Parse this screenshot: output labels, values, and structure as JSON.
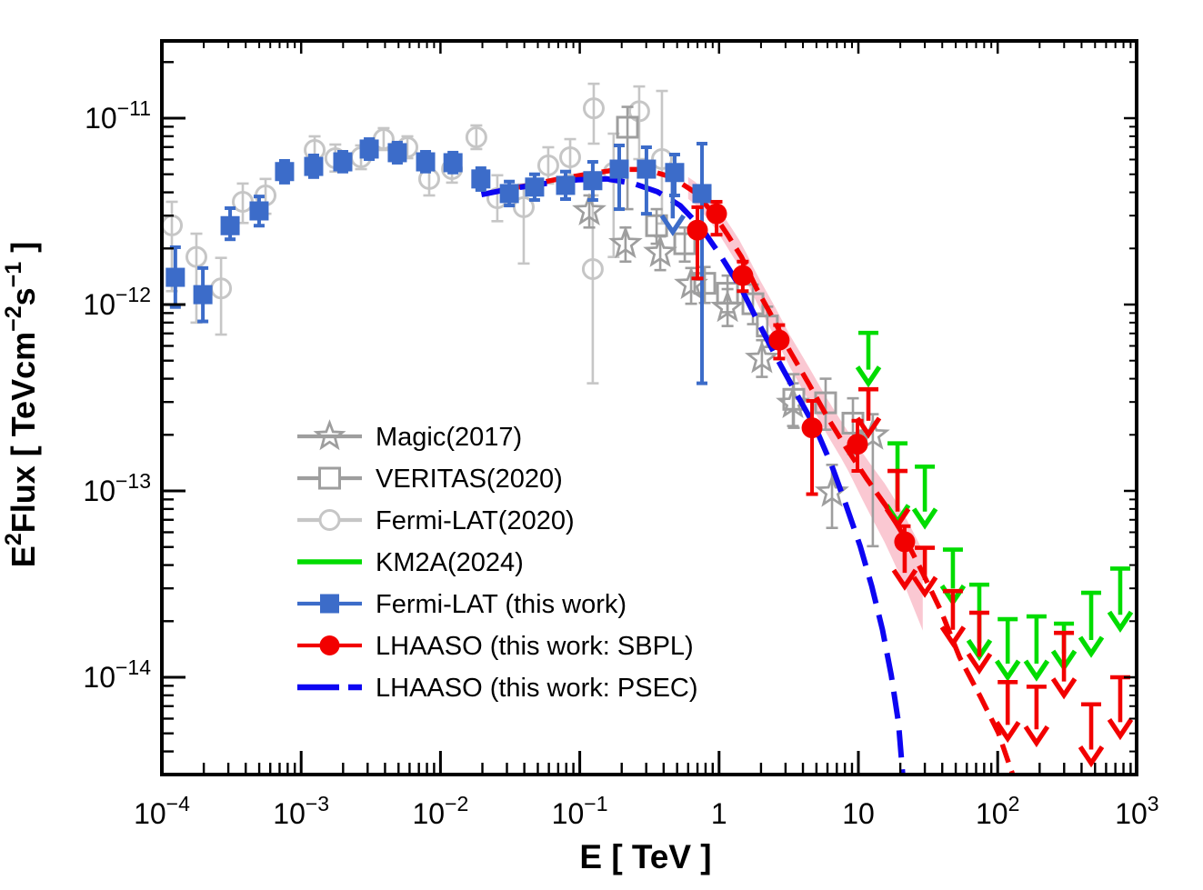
{
  "colors": {
    "frame": "#000000",
    "fermi2020_gray": "#c6c6c6",
    "instrument_gray": "#9e9e9e",
    "fermi_blue": "#3c6cc9",
    "psec_blue": "#0d05f2",
    "lhaaso_red": "#f20000",
    "km2a_green": "#00dc00",
    "band_pink": "#f9c2cd",
    "background": "#ffffff"
  },
  "legend": {
    "items": [
      {
        "label": "Magic(2017)",
        "marker": "star",
        "color": "#9e9e9e"
      },
      {
        "label": "VERITAS(2020)",
        "marker": "open-square",
        "color": "#9e9e9e"
      },
      {
        "label": "Fermi-LAT(2020)",
        "marker": "open-circle",
        "color": "#c6c6c6"
      },
      {
        "label": "KM2A(2024)",
        "marker": "line",
        "color": "#00dc00"
      },
      {
        "label": "Fermi-LAT (this work)",
        "marker": "filled-square",
        "color": "#3c6cc9"
      },
      {
        "label": "LHAASO (this work: SBPL)",
        "marker": "filled-circle",
        "color": "#f20000"
      },
      {
        "label": "LHAASO (this work: PSEC)",
        "marker": "dashed-line",
        "color": "#0d05f2"
      }
    ]
  },
  "chart_data": {
    "type": "scatter",
    "title": "",
    "xlabel": "E [ TeV ]",
    "ylabel": "E2Flux [ TeVcm-2s-1 ]",
    "ylabel_segments": [
      {
        "t": "E",
        "sup": false
      },
      {
        "t": "2",
        "sup": true
      },
      {
        "t": "Flux [ TeVcm",
        "sup": false
      },
      {
        "t": "-2",
        "sup": true
      },
      {
        "t": "s",
        "sup": false
      },
      {
        "t": "-1",
        "sup": true
      },
      {
        "t": " ]",
        "sup": false
      }
    ],
    "x_scale": "log",
    "y_scale": "log",
    "xlim": [
      0.0001,
      1000.0
    ],
    "ylim": [
      2.9e-15,
      2.6e-11
    ],
    "x_tick_exponents": [
      -4,
      -3,
      -2,
      -1,
      0,
      1,
      2,
      3
    ],
    "y_tick_exponents": [
      -11,
      -12,
      -13,
      -14
    ],
    "grid": false,
    "legend_position": "center-left",
    "series": [
      {
        "name": "Fermi-LAT(2020)",
        "marker": "open-circle",
        "color": "#c6c6c6",
        "points": [
          [
            0.000118,
            2.66e-12,
            3.56e-12,
            1.18e-12
          ],
          [
            0.000177,
            1.8e-12,
            2.4e-12,
            8e-13
          ],
          [
            0.000266,
            1.22e-12,
            1.78e-12,
            6.9e-13
          ],
          [
            0.000381,
            3.56e-12,
            4.46e-12,
            2.74e-12
          ],
          [
            0.000555,
            3.85e-12,
            4.72e-12,
            3.07e-12
          ],
          [
            0.00125,
            6.75e-12,
            7.99e-12,
            5.7e-12
          ],
          [
            0.00176,
            6.1e-12,
            7.22e-12,
            5.17e-12
          ],
          [
            0.00269,
            6.17e-12,
            7.14e-12,
            5.33e-12
          ],
          [
            0.00391,
            7.72e-12,
            8.84e-12,
            6.75e-12
          ],
          [
            0.00579,
            6.98e-12,
            7.99e-12,
            6.1e-12
          ],
          [
            0.0083,
            4.72e-12,
            5.77e-12,
            3.85e-12
          ],
          [
            0.0121,
            5.33e-12,
            6.31e-12,
            4.51e-12
          ],
          [
            0.0181,
            7.9e-12,
            9.14e-12,
            6.83e-12
          ],
          [
            0.0256,
            3.72e-12,
            4.94e-12,
            2.8e-12
          ],
          [
            0.0396,
            3.33e-12,
            4.41e-12,
            1.66e-12
          ],
          [
            0.0594,
            5.58e-12,
            6.98e-12,
            4.46e-12
          ],
          [
            0.0853,
            6.17e-12,
            7.72e-12,
            4.94e-12
          ],
          [
            0.124,
            1.55e-12,
            3.85e-12,
            3.78e-13
          ],
          [
            0.126,
            1.13e-11,
            1.53e-11,
            7.3e-12
          ],
          [
            0.175,
            5.11e-12,
            8.26e-12,
            1.8e-12
          ],
          [
            0.267,
            1.09e-11,
            1.48e-11,
            6.03e-12
          ],
          [
            0.389,
            6.03e-12,
            1.4e-11,
            2.72e-12
          ]
        ]
      },
      {
        "name": "VERITAS(2020)",
        "marker": "open-square",
        "color": "#9e9e9e",
        "points": [
          [
            0.22,
            8.94e-12,
            1.15e-11,
            3.25e-12
          ],
          [
            0.356,
            2.65e-12,
            3.25e-12,
            2.12e-12
          ],
          [
            0.567,
            2.12e-12,
            2.59e-12,
            1.7e-12
          ],
          [
            0.789,
            1.3e-12,
            1.59e-12,
            1.02e-12
          ],
          [
            1.15,
            1.15e-12,
            1.43e-12,
            9.1e-13
          ],
          [
            1.75,
            1.01e-12,
            1.28e-12,
            7.85e-13
          ],
          [
            2.22,
            7.67e-13,
            9.74e-13,
            5.92e-13
          ],
          [
            3.44,
            3.1e-13,
            4.23e-13,
            2.18e-13
          ],
          [
            5.82,
            2.97e-13,
            4e-13,
            2.13e-13
          ],
          [
            9.14,
            2.31e-13,
            3.14e-13,
            1.58e-13
          ]
        ]
      },
      {
        "name": "Magic(2017)",
        "marker": "star",
        "color": "#9e9e9e",
        "points": [
          [
            0.117,
            3.18e-12,
            3.85e-12,
            2.59e-12
          ],
          [
            0.213,
            2.12e-12,
            2.59e-12,
            1.7e-12
          ],
          [
            0.378,
            1.9e-12,
            2.32e-12,
            1.53e-12
          ],
          [
            0.63,
            1.28e-12,
            1.57e-12,
            1.01e-12
          ],
          [
            1.15,
            9.64e-13,
            1.21e-12,
            7.67e-13
          ],
          [
            2.03,
            5.13e-13,
            6.44e-13,
            4.09e-13
          ],
          [
            3.39,
            2.94e-13,
            3.78e-13,
            2.23e-13
          ],
          [
            6.47,
            9.83e-14,
            1.38e-13,
            6.33e-14
          ],
          [
            12.7,
            1.99e-13,
            2.58e-13,
            5.05e-14
          ]
        ]
      },
      {
        "name": "Fermi-LAT (this work)",
        "marker": "filled-square",
        "color": "#3c6cc9",
        "points": [
          [
            0.000125,
            1.4e-12,
            2.03e-12,
            9.7e-13
          ],
          [
            0.000197,
            1.13e-12,
            1.57e-12,
            8.12e-13
          ],
          [
            0.000309,
            2.65e-12,
            3.29e-12,
            2.24e-12
          ],
          [
            0.000499,
            3.18e-12,
            3.8e-12,
            2.65e-12
          ],
          [
            0.00076,
            5.17e-12,
            5.9e-12,
            4.51e-12
          ],
          [
            0.00123,
            5.51e-12,
            6.31e-12,
            4.83e-12
          ],
          [
            0.00199,
            5.83e-12,
            6.6e-12,
            5.17e-12
          ],
          [
            0.00308,
            6.83e-12,
            7.72e-12,
            6.03e-12
          ],
          [
            0.0049,
            6.53e-12,
            7.39e-12,
            5.77e-12
          ],
          [
            0.00782,
            5.83e-12,
            6.6e-12,
            5.17e-12
          ],
          [
            0.0123,
            5.77e-12,
            6.53e-12,
            5.11e-12
          ],
          [
            0.0195,
            4.72e-12,
            5.39e-12,
            4.12e-12
          ],
          [
            0.0312,
            3.94e-12,
            4.57e-12,
            3.4e-12
          ],
          [
            0.0474,
            4.27e-12,
            5e-12,
            3.64e-12
          ],
          [
            0.0791,
            4.36e-12,
            5.17e-12,
            3.68e-12
          ],
          [
            0.124,
            4.62e-12,
            5.83e-12,
            3.64e-12
          ],
          [
            0.192,
            5.33e-12,
            7.14e-12,
            3.25e-12
          ],
          [
            0.301,
            5.33e-12,
            6.98e-12,
            3.07e-12
          ],
          [
            0.48,
            5.11e-12,
            6.38e-12,
            3.85e-12
          ],
          [
            0.754,
            3.94e-12,
            7.3e-12,
            3.78e-13
          ]
        ],
        "upper_limit": {
          "e": 0.465,
          "f_top": 4.9e-12,
          "f_tip": 2.45e-12
        }
      },
      {
        "name": "LHAASO (this work: SBPL)",
        "marker": "filled-circle",
        "color": "#f20000",
        "points": [
          [
            0.699,
            2.51e-12,
            3.33e-12,
            1.38e-12
          ],
          [
            0.959,
            3.07e-12,
            3.56e-12,
            2.37e-12
          ],
          [
            1.48,
            1.43e-12,
            1.7e-12,
            1.18e-12
          ],
          [
            2.7,
            6.44e-13,
            7.76e-13,
            5.13e-13
          ],
          [
            4.65,
            2.18e-13,
            3.04e-13,
            9.61e-14
          ],
          [
            9.85,
            1.78e-13,
            2.38e-13,
            1.28e-13
          ]
        ],
        "arrow_point": {
          "e": 21.5,
          "f": 5.33e-14,
          "f_hi": 6.47e-14,
          "f_tip": 3.07e-14
        },
        "upper_limits": [
          [
            11.8,
            3.51e-13,
            2.01e-13
          ],
          [
            19.1,
            1.28e-13,
            6.54e-14
          ],
          [
            30.0,
            4.95e-14,
            2.81e-14
          ],
          [
            47.7,
            2.9e-14,
            1.52e-14
          ],
          [
            73.8,
            2.22e-14,
            1.09e-14
          ],
          [
            118,
            9.42e-15,
            4.69e-15
          ],
          [
            190,
            8.9e-15,
            4.44e-15
          ],
          [
            299,
            1.73e-14,
            8.02e-15
          ],
          [
            469,
            7.16e-15,
            3.46e-15
          ],
          [
            758,
            1e-14,
            4.85e-15
          ]
        ]
      },
      {
        "name": "KM2A(2024)",
        "marker": "upper-limit-arrow",
        "color": "#00dc00",
        "upper_limits": [
          [
            11.8,
            7.05e-13,
            3.78e-13
          ],
          [
            19.1,
            1.8e-13,
            6.85e-14
          ],
          [
            30.0,
            1.35e-13,
            6.54e-14
          ],
          [
            47.7,
            4.84e-14,
            2.53e-14
          ],
          [
            73.8,
            3.14e-14,
            1.29e-14
          ],
          [
            118,
            2.05e-14,
            1e-14
          ],
          [
            190,
            2.12e-14,
            1e-14
          ],
          [
            299,
            1.94e-14,
            1.13e-14
          ],
          [
            469,
            2.84e-14,
            1.34e-14
          ],
          [
            758,
            3.83e-14,
            1.83e-14
          ]
        ]
      }
    ],
    "fits": {
      "sbpl": {
        "name": "LHAASO (this work: SBPL)",
        "style": "dashed",
        "color": "#f20000",
        "band": {
          "e_min": 0.6,
          "e_max": 29.0,
          "color": "#f9c2cd"
        },
        "points": [
          [
            0.023,
            3.98e-12
          ],
          [
            0.039,
            4.31e-12
          ],
          [
            0.0657,
            4.67e-12
          ],
          [
            0.112,
            5e-12
          ],
          [
            0.189,
            5.31e-12
          ],
          [
            0.298,
            5.31e-12
          ],
          [
            0.455,
            4.83e-12
          ],
          [
            0.661,
            4.03e-12
          ],
          [
            0.903,
            3.11e-12
          ],
          [
            1.15,
            2.37e-12
          ],
          [
            1.45,
            1.8e-12
          ],
          [
            1.87,
            1.21e-12
          ],
          [
            2.45,
            8.39e-13
          ],
          [
            3.21,
            5.65e-13
          ],
          [
            4.43,
            3.73e-13
          ],
          [
            5.98,
            2.49e-13
          ],
          [
            8.2,
            1.7e-13
          ],
          [
            11.4,
            1.17e-13
          ],
          [
            15.7,
            8.35e-14
          ],
          [
            21.5,
            5.63e-14
          ],
          [
            29.1,
            3.6e-14
          ],
          [
            39.4,
            2.25e-14
          ],
          [
            53.3,
            1.28e-14
          ],
          [
            75.0,
            7.88e-15
          ],
          [
            101,
            5.04e-15
          ],
          [
            130,
            2.91e-15
          ]
        ]
      },
      "psec": {
        "name": "LHAASO (this work: PSEC)",
        "style": "dashed",
        "color": "#0d05f2",
        "points": [
          [
            0.0197,
            3.89e-12
          ],
          [
            0.0335,
            4.21e-12
          ],
          [
            0.0566,
            4.46e-12
          ],
          [
            0.0962,
            4.67e-12
          ],
          [
            0.158,
            4.72e-12
          ],
          [
            0.244,
            4.46e-12
          ],
          [
            0.361,
            4.03e-12
          ],
          [
            0.524,
            3.4e-12
          ],
          [
            0.744,
            2.59e-12
          ],
          [
            1.03,
            1.82e-12
          ],
          [
            1.45,
            1.21e-12
          ],
          [
            1.94,
            7.85e-13
          ],
          [
            2.61,
            5.13e-13
          ],
          [
            3.54,
            3.39e-13
          ],
          [
            4.93,
            2.18e-13
          ],
          [
            6.41,
            1.38e-13
          ],
          [
            8.17,
            8.35e-14
          ],
          [
            10.3,
            5.05e-14
          ],
          [
            12.5,
            3.07e-14
          ],
          [
            14.9,
            1.8e-14
          ],
          [
            17.2,
            1.03e-14
          ],
          [
            19.4,
            5.7e-15
          ],
          [
            20.9,
            2.91e-15
          ]
        ]
      }
    }
  }
}
